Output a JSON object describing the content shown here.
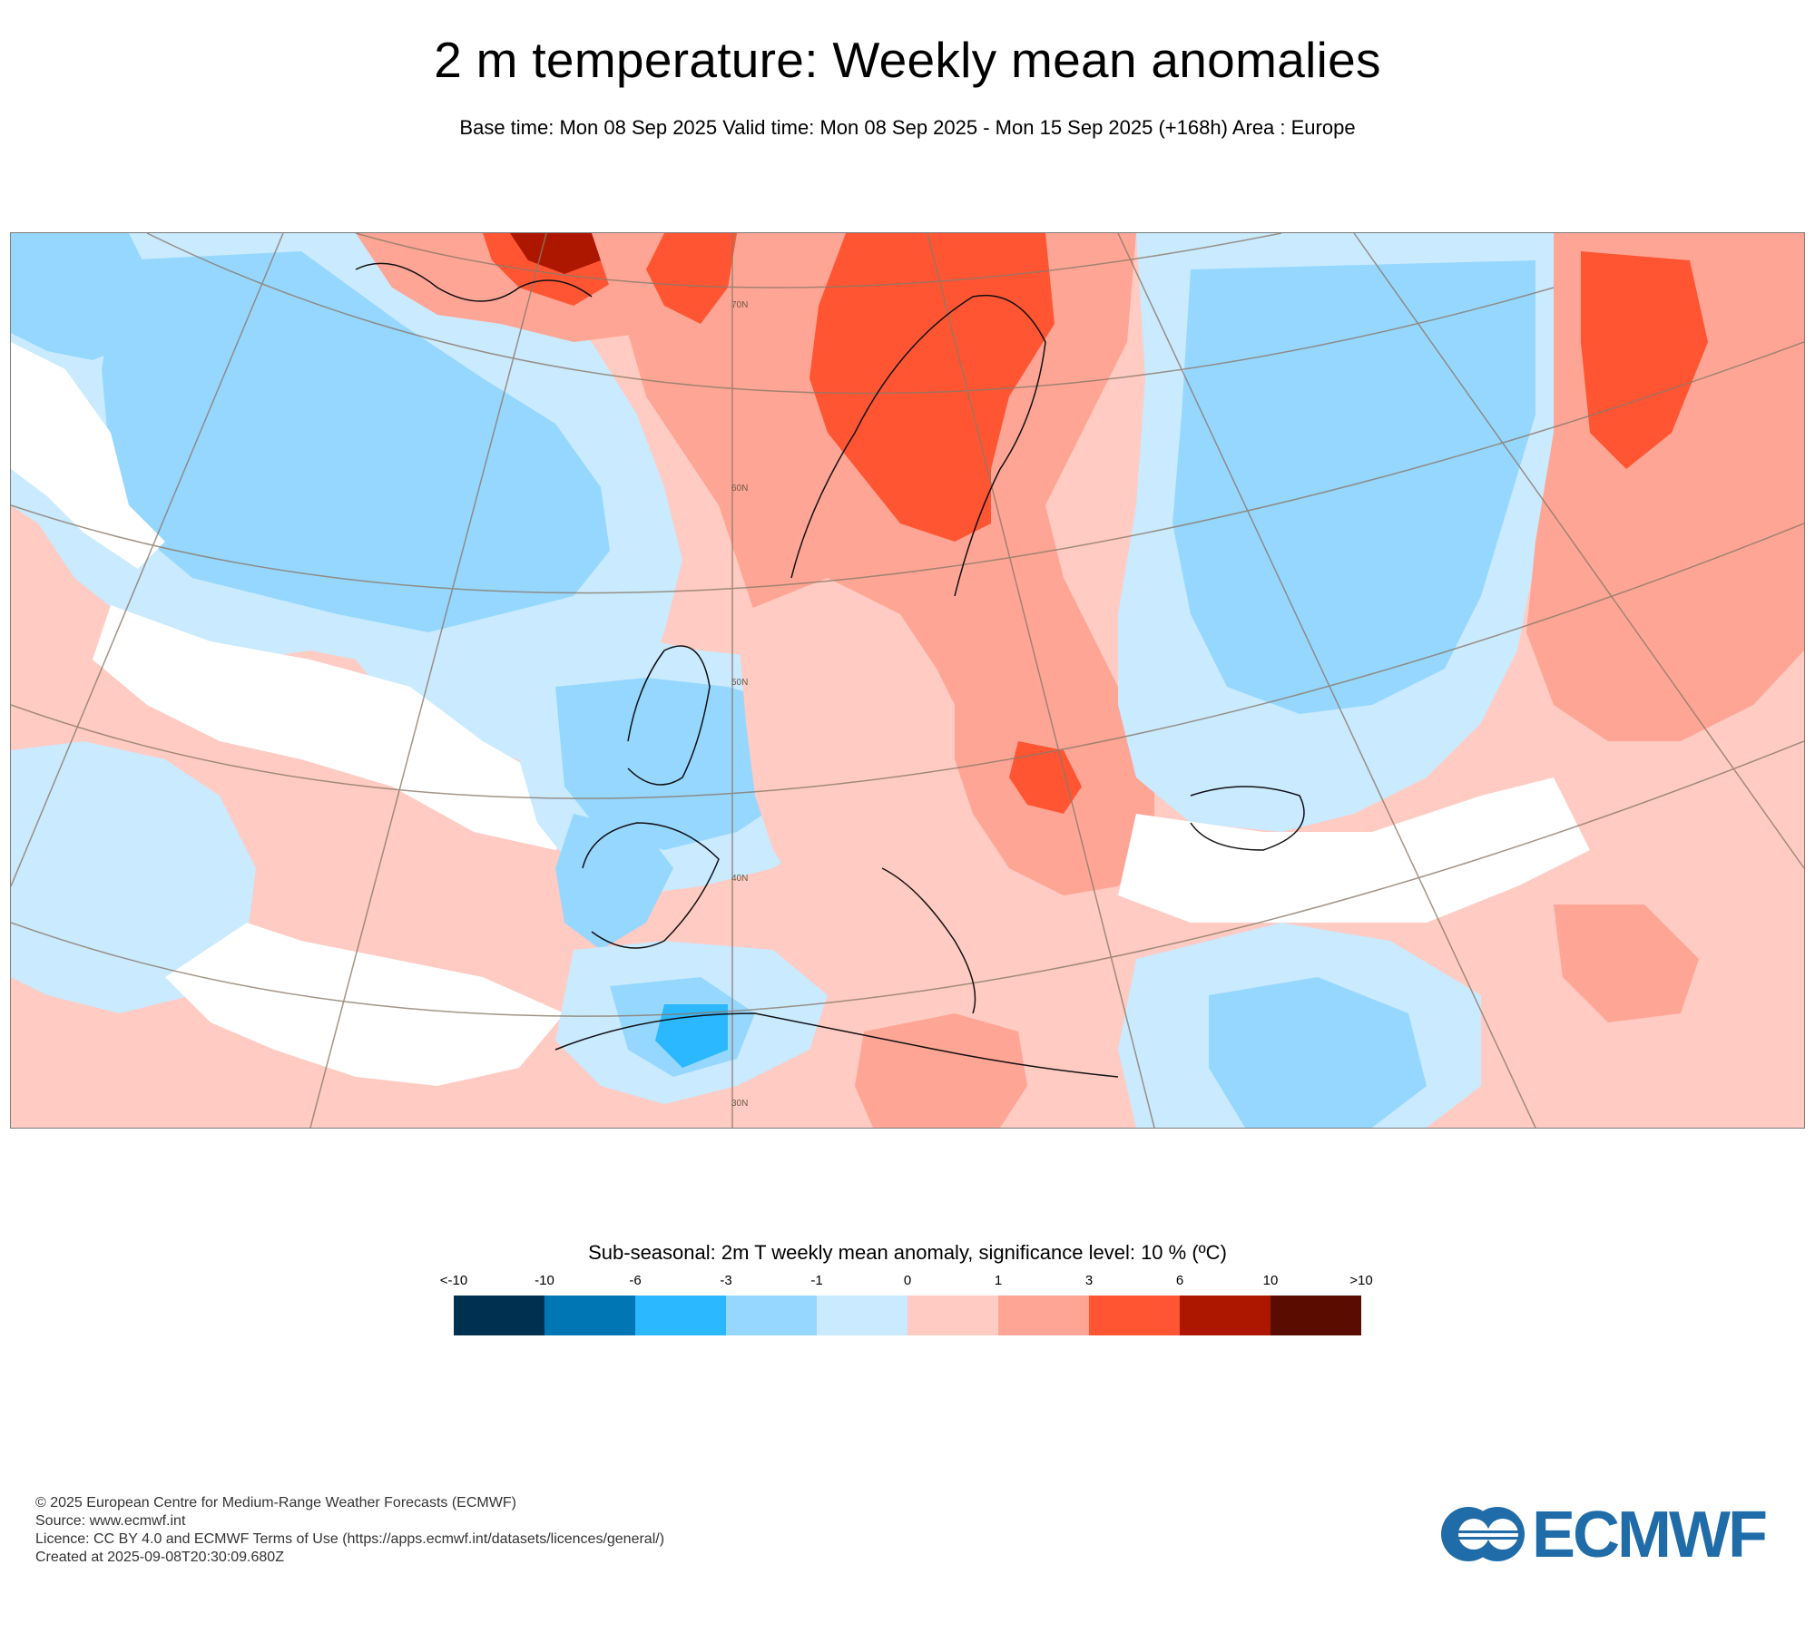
{
  "header": {
    "title": "2 m temperature: Weekly mean anomalies",
    "subtitle": "Base time: Mon 08 Sep 2025 Valid time: Mon 08 Sep 2025 - Mon 15 Sep 2025 (+168h) Area : Europe"
  },
  "map": {
    "area": "Europe",
    "latitude_labels": [
      "70N",
      "60N",
      "50N",
      "40N",
      "30N"
    ]
  },
  "legend": {
    "title": "Sub-seasonal: 2m T weekly mean anomaly, significance level: 10 % (ºC)",
    "ticks": [
      "<-10",
      "-10",
      "-6",
      "-3",
      "-1",
      "0",
      "1",
      "3",
      "6",
      "10",
      ">10"
    ],
    "colors": [
      "#003050",
      "#0077b4",
      "#2bb8ff",
      "#96d7ff",
      "#c9eaff",
      "#ffcbc2",
      "#ffa595",
      "#ff5533",
      "#ad1700",
      "#5a0c00"
    ]
  },
  "colors": {
    "cold_1": "#c9eaff",
    "cold_3": "#96d7ff",
    "cold_6": "#2bb8ff",
    "warm_1": "#ffcbc2",
    "warm_3": "#ffa595",
    "warm_6": "#ff5533",
    "warm_10": "#ad1700",
    "warm_max": "#5a0c00",
    "logo": "#1f6ca8"
  },
  "footer": {
    "copyright": "© 2025 European Centre for Medium-Range Weather Forecasts (ECMWF)",
    "source": "Source: www.ecmwf.int",
    "licence": "Licence: CC BY 4.0 and ECMWF Terms of Use (https://apps.ecmwf.int/datasets/licences/general/)",
    "created": "Created at 2025-09-08T20:30:09.680Z"
  },
  "logo": {
    "text": "ECMWF",
    "icon": "ecmwf-logo-icon"
  }
}
